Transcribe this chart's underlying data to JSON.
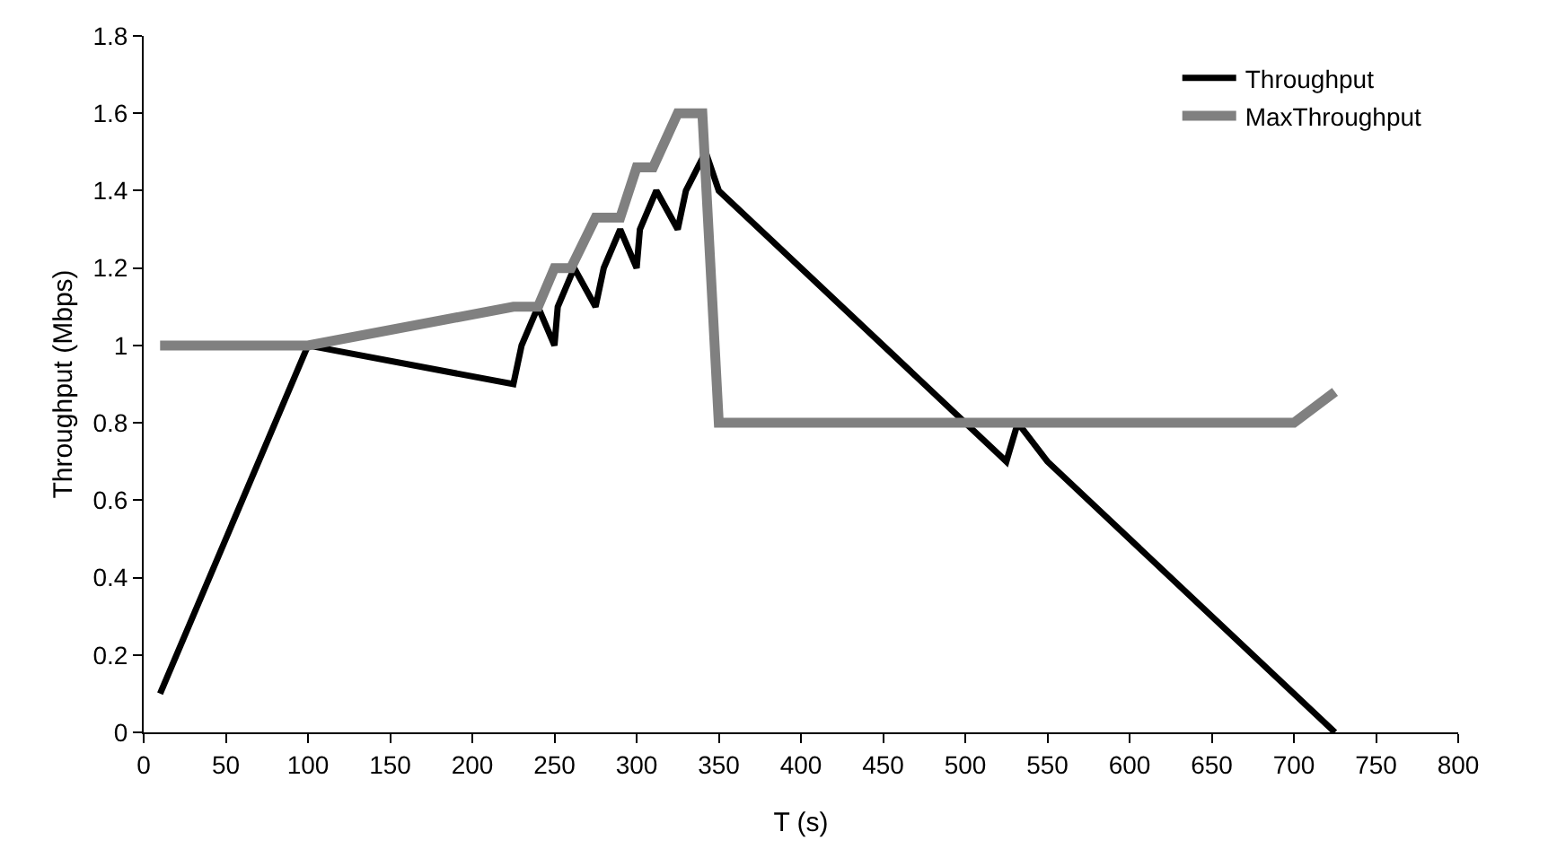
{
  "chart_data": {
    "type": "line",
    "xlabel": "T (s)",
    "ylabel": "Throughput (Mbps)",
    "xlim": [
      0,
      800
    ],
    "xticks": [
      0,
      50,
      100,
      150,
      200,
      250,
      300,
      350,
      400,
      450,
      500,
      550,
      600,
      650,
      700,
      750,
      800
    ],
    "ylim": [
      0,
      1.8
    ],
    "yticks": [
      0,
      0.2,
      0.4,
      0.6,
      0.8,
      1,
      1.2,
      1.4,
      1.6,
      1.8
    ],
    "grid": false,
    "legend": "top right",
    "marker": "none",
    "line_style": "solid",
    "series": [
      {
        "name": "Throughput",
        "color": "#000000",
        "x": [
          10,
          100,
          225,
          230,
          240,
          250,
          252,
          262,
          275,
          280,
          290,
          300,
          302,
          312,
          325,
          330,
          342,
          350,
          525,
          532,
          550,
          725
        ],
        "values": [
          0.1,
          1,
          0.9,
          1.0,
          1.1,
          1.0,
          1.1,
          1.2,
          1.1,
          1.2,
          1.3,
          1.2,
          1.3,
          1.4,
          1.3,
          1.4,
          1.5,
          1.4,
          0.7,
          0.8,
          0.7,
          0
        ]
      },
      {
        "name": "MaxThroughput",
        "color": "#808080",
        "x": [
          10,
          100,
          225,
          240,
          250,
          260,
          275,
          290,
          300,
          310,
          325,
          340,
          350,
          700,
          725
        ],
        "values": [
          1,
          1,
          1.1,
          1.1,
          1.2,
          1.2,
          1.33,
          1.33,
          1.46,
          1.46,
          1.6,
          1.6,
          0.8,
          0.8,
          0.88
        ]
      }
    ]
  }
}
